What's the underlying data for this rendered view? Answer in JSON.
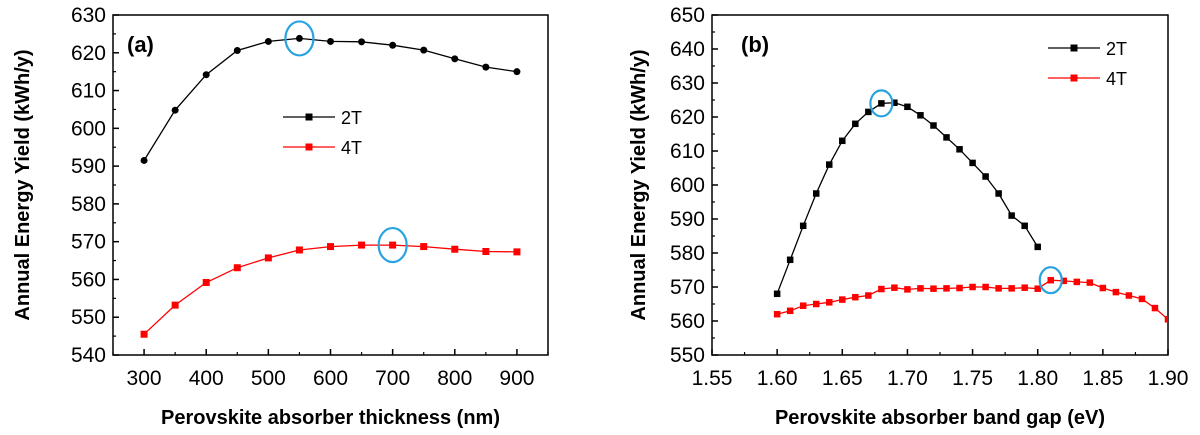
{
  "chart_data": [
    {
      "type": "line",
      "panel_label": "(a)",
      "xlabel": "Perovskite absorber thickness (nm)",
      "ylabel": "Annual Energy Yield (kWh/y)",
      "xlim": [
        250,
        950
      ],
      "ylim": [
        540,
        630
      ],
      "xticks": [
        300,
        400,
        500,
        600,
        700,
        800,
        900
      ],
      "yticks": [
        540,
        550,
        560,
        570,
        580,
        590,
        600,
        610,
        620,
        630
      ],
      "legend_position": "center",
      "series": [
        {
          "name": "2T",
          "color": "#000000",
          "marker": "circle",
          "x": [
            300,
            350,
            400,
            450,
            500,
            550,
            600,
            650,
            700,
            750,
            800,
            850,
            900
          ],
          "y": [
            591.5,
            604.8,
            614.2,
            620.6,
            623.0,
            623.8,
            623.0,
            622.9,
            622.0,
            620.7,
            618.4,
            616.2,
            615.0
          ]
        },
        {
          "name": "4T",
          "color": "#ff0000",
          "marker": "square",
          "x": [
            300,
            350,
            400,
            450,
            500,
            550,
            600,
            650,
            700,
            750,
            800,
            850,
            900
          ],
          "y": [
            545.5,
            553.2,
            559.2,
            563.1,
            565.7,
            567.8,
            568.7,
            569.1,
            569.1,
            568.7,
            568.0,
            567.4,
            567.3
          ]
        }
      ],
      "highlights": [
        {
          "series": "2T",
          "x": 550,
          "y": 623.8,
          "color": "#29a3e0"
        },
        {
          "series": "4T",
          "x": 700,
          "y": 569.1,
          "color": "#29a3e0"
        }
      ]
    },
    {
      "type": "line",
      "panel_label": "(b)",
      "xlabel": "Perovskite absorber band gap (eV)",
      "ylabel": "Annual Energy Yield (kWh/y)",
      "xlim": [
        1.55,
        1.9
      ],
      "ylim": [
        550,
        650
      ],
      "xticks": [
        "1.55",
        "1.60",
        "1.65",
        "1.70",
        "1.75",
        "1.80",
        "1.85",
        "1.90"
      ],
      "yticks": [
        550,
        560,
        570,
        580,
        590,
        600,
        610,
        620,
        630,
        640,
        650
      ],
      "legend_position": "top-right",
      "series": [
        {
          "name": "2T",
          "color": "#000000",
          "marker": "square",
          "x": [
            1.6,
            1.61,
            1.62,
            1.63,
            1.64,
            1.65,
            1.66,
            1.67,
            1.68,
            1.69,
            1.7,
            1.71,
            1.72,
            1.73,
            1.74,
            1.75,
            1.76,
            1.77,
            1.78,
            1.79,
            1.8
          ],
          "y": [
            568.0,
            578.0,
            588.0,
            597.5,
            606.0,
            613.0,
            618.0,
            621.5,
            624.0,
            624.2,
            623.0,
            620.5,
            617.5,
            614.0,
            610.5,
            606.5,
            602.5,
            597.5,
            591.0,
            588.0,
            581.8
          ]
        },
        {
          "name": "4T",
          "color": "#ff0000",
          "marker": "square",
          "x": [
            1.6,
            1.61,
            1.62,
            1.63,
            1.64,
            1.65,
            1.66,
            1.67,
            1.68,
            1.69,
            1.7,
            1.71,
            1.72,
            1.73,
            1.74,
            1.75,
            1.76,
            1.77,
            1.78,
            1.79,
            1.8,
            1.81,
            1.82,
            1.83,
            1.84,
            1.85,
            1.86,
            1.87,
            1.88,
            1.89,
            1.9
          ],
          "y": [
            562.0,
            563.0,
            564.5,
            565.0,
            565.5,
            566.3,
            567.0,
            567.5,
            569.4,
            569.8,
            569.3,
            569.6,
            569.5,
            569.6,
            569.7,
            570.0,
            570.0,
            569.6,
            569.6,
            569.8,
            569.5,
            572.0,
            571.8,
            571.5,
            571.3,
            569.7,
            568.5,
            567.5,
            566.5,
            563.8,
            560.5
          ]
        }
      ],
      "highlights": [
        {
          "series": "2T",
          "x": 1.68,
          "y": 624.0,
          "color": "#29a3e0"
        },
        {
          "series": "4T",
          "x": 1.81,
          "y": 572.0,
          "color": "#29a3e0"
        }
      ]
    }
  ]
}
